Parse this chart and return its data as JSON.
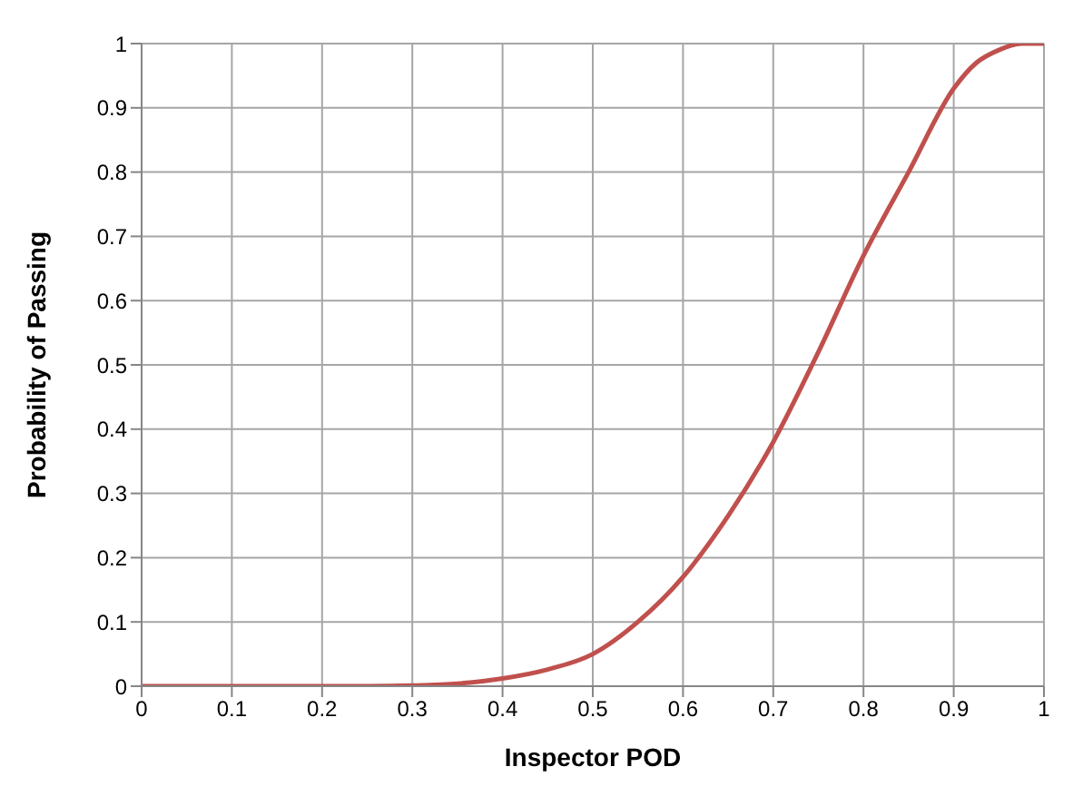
{
  "chart_data": {
    "type": "line",
    "xlabel": "Inspector POD",
    "ylabel": "Probability of Passing",
    "series": [
      {
        "color": "#c0504d",
        "x": [
          0,
          0.1,
          0.2,
          0.25,
          0.3,
          0.35,
          0.4,
          0.45,
          0.5,
          0.55,
          0.6,
          0.65,
          0.7,
          0.75,
          0.8,
          0.85,
          0.9,
          0.925,
          0.95,
          0.975,
          1
        ],
        "values": [
          0,
          0,
          0,
          0,
          0.001,
          0.004,
          0.012,
          0.026,
          0.05,
          0.1,
          0.17,
          0.265,
          0.38,
          0.52,
          0.67,
          0.8,
          0.93,
          0.97,
          0.99,
          1,
          1
        ]
      }
    ],
    "xlim": [
      0,
      1
    ],
    "xticks": [
      0,
      0.1,
      0.2,
      0.3,
      0.4,
      0.5,
      0.6,
      0.7,
      0.8,
      0.9,
      1
    ],
    "ylim": [
      0,
      1
    ],
    "yticks": [
      0,
      0.1,
      0.2,
      0.3,
      0.4,
      0.5,
      0.6,
      0.7,
      0.8,
      0.9,
      1
    ],
    "grid": true,
    "legend": false,
    "marker": "none",
    "line_style": "solid"
  }
}
